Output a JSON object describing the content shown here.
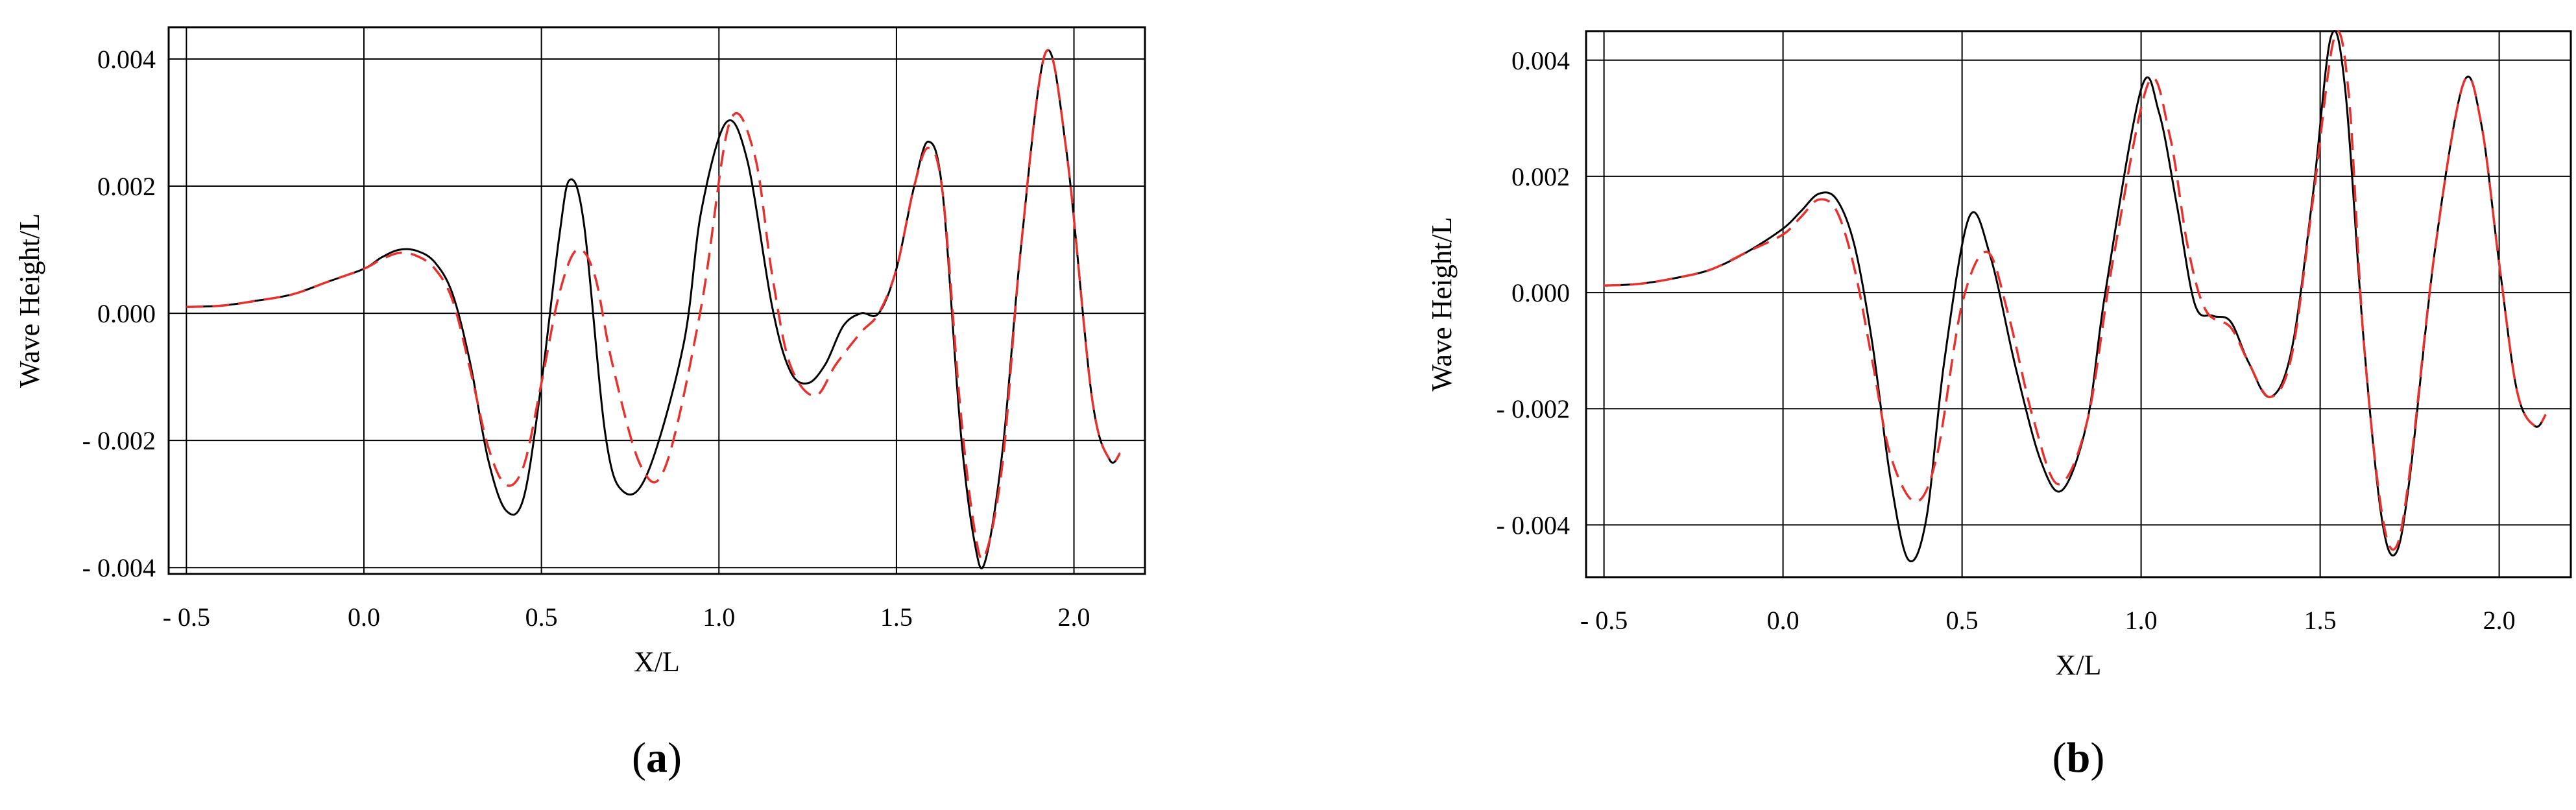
{
  "chart_data": [
    {
      "type": "line",
      "panel_label": {
        "open": "(",
        "letter": "a",
        "close": ")"
      },
      "xlabel": "X/L",
      "ylabel": "Wave Height/L",
      "xlim": [
        -0.55,
        2.2
      ],
      "ylim": [
        -0.0041,
        0.0045
      ],
      "xticks": [
        -0.5,
        0.0,
        0.5,
        1.0,
        1.5,
        2.0
      ],
      "xtick_labels": [
        "- 0.5",
        "0.0",
        "0.5",
        "1.0",
        "1.5",
        "2.0"
      ],
      "yticks": [
        -0.004,
        -0.002,
        0.0,
        0.002,
        0.004
      ],
      "ytick_labels": [
        "- 0.004",
        "- 0.002",
        "0.000",
        "0.002",
        "0.004"
      ],
      "grid": true,
      "legend": "none",
      "series": [
        {
          "color": "#000000",
          "dash": "solid",
          "x": [
            -0.5,
            -0.4,
            -0.3,
            -0.2,
            -0.1,
            0.0,
            0.05,
            0.1,
            0.15,
            0.2,
            0.25,
            0.3,
            0.35,
            0.4,
            0.45,
            0.5,
            0.55,
            0.58,
            0.62,
            0.68,
            0.73,
            0.8,
            0.9,
            0.95,
            1.02,
            1.08,
            1.15,
            1.2,
            1.25,
            1.3,
            1.35,
            1.4,
            1.45,
            1.5,
            1.55,
            1.59,
            1.63,
            1.68,
            1.72,
            1.75,
            1.8,
            1.85,
            1.92,
            1.98,
            2.05,
            2.1,
            2.13
          ],
          "y": [
            0.0001,
            0.00012,
            0.0002,
            0.0003,
            0.0005,
            0.0007,
            0.00088,
            0.001,
            0.00098,
            0.0008,
            0.0003,
            -0.0008,
            -0.0023,
            -0.0031,
            -0.0029,
            -0.0011,
            0.0012,
            0.0021,
            0.0014,
            -0.0019,
            -0.0028,
            -0.0025,
            -0.0005,
            0.0016,
            0.003,
            0.0024,
            0.0001,
            -0.0009,
            -0.0011,
            -0.0008,
            -0.0002,
            0.0,
            0.0,
            0.0007,
            0.002,
            0.0027,
            0.0019,
            -0.0018,
            -0.0036,
            -0.0039,
            -0.0021,
            0.001,
            0.0041,
            0.0025,
            -0.0013,
            -0.0023,
            -0.0022
          ]
        },
        {
          "color": "#e8312d",
          "dash": "dashed",
          "x": [
            -0.5,
            -0.4,
            -0.3,
            -0.2,
            -0.1,
            0.0,
            0.05,
            0.1,
            0.15,
            0.2,
            0.25,
            0.3,
            0.35,
            0.4,
            0.45,
            0.5,
            0.55,
            0.6,
            0.65,
            0.7,
            0.78,
            0.85,
            0.95,
            1.03,
            1.1,
            1.15,
            1.2,
            1.27,
            1.33,
            1.4,
            1.45,
            1.5,
            1.55,
            1.59,
            1.63,
            1.68,
            1.72,
            1.75,
            1.8,
            1.85,
            1.92,
            1.98,
            2.05,
            2.1,
            2.13
          ],
          "y": [
            0.0001,
            0.00012,
            0.0002,
            0.0003,
            0.0005,
            0.0007,
            0.00085,
            0.00095,
            0.0009,
            0.0007,
            0.0002,
            -0.0009,
            -0.0021,
            -0.0027,
            -0.0024,
            -0.0011,
            0.0003,
            0.001,
            0.0006,
            -0.0008,
            -0.0024,
            -0.0024,
            0.0001,
            0.003,
            0.0025,
            0.0006,
            -0.0008,
            -0.0013,
            -0.0008,
            -0.0003,
            0.0,
            0.0007,
            0.002,
            0.0026,
            0.0019,
            -0.0015,
            -0.0034,
            -0.0038,
            -0.0023,
            0.001,
            0.0041,
            0.0025,
            -0.0013,
            -0.0023,
            -0.0022
          ]
        }
      ]
    },
    {
      "type": "line",
      "panel_label": {
        "open": "(",
        "letter": "b",
        "close": ")"
      },
      "xlabel": "X/L",
      "ylabel": "Wave Height/L",
      "xlim": [
        -0.55,
        2.2
      ],
      "ylim": [
        -0.0049,
        0.0045
      ],
      "xticks": [
        -0.5,
        0.0,
        0.5,
        1.0,
        1.5,
        2.0
      ],
      "xtick_labels": [
        "- 0.5",
        "0.0",
        "0.5",
        "1.0",
        "1.5",
        "2.0"
      ],
      "yticks": [
        -0.004,
        -0.002,
        0.0,
        0.002,
        0.004
      ],
      "ytick_labels": [
        "- 0.004",
        "- 0.002",
        "0.000",
        "0.002",
        "0.004"
      ],
      "grid": true,
      "legend": "none",
      "series": [
        {
          "color": "#000000",
          "dash": "solid",
          "x": [
            -0.5,
            -0.4,
            -0.3,
            -0.2,
            -0.1,
            0.0,
            0.05,
            0.1,
            0.15,
            0.2,
            0.25,
            0.3,
            0.35,
            0.4,
            0.45,
            0.52,
            0.58,
            0.65,
            0.72,
            0.78,
            0.85,
            0.9,
            1.0,
            1.05,
            1.1,
            1.15,
            1.2,
            1.25,
            1.3,
            1.36,
            1.42,
            1.48,
            1.53,
            1.57,
            1.62,
            1.67,
            1.71,
            1.75,
            1.82,
            1.9,
            1.95,
            2.0,
            2.05,
            2.1,
            2.13
          ],
          "y": [
            0.00012,
            0.00015,
            0.00025,
            0.0004,
            0.0007,
            0.0011,
            0.0014,
            0.0017,
            0.0016,
            0.0008,
            -0.0009,
            -0.0032,
            -0.0046,
            -0.0039,
            -0.0012,
            0.0013,
            0.0006,
            -0.0013,
            -0.0029,
            -0.0034,
            -0.0022,
            0.0,
            0.0035,
            0.0031,
            0.0015,
            -0.0002,
            -0.0004,
            -0.0005,
            -0.0012,
            -0.0018,
            -0.001,
            0.0017,
            0.0044,
            0.0035,
            -0.0007,
            -0.0038,
            -0.0045,
            -0.0032,
            0.0007,
            0.0036,
            0.0029,
            0.0005,
            -0.0017,
            -0.0023,
            -0.0021
          ]
        },
        {
          "color": "#e8312d",
          "dash": "dashed",
          "x": [
            -0.5,
            -0.4,
            -0.3,
            -0.2,
            -0.1,
            0.0,
            0.05,
            0.1,
            0.15,
            0.2,
            0.25,
            0.3,
            0.37,
            0.43,
            0.5,
            0.57,
            0.63,
            0.7,
            0.77,
            0.85,
            0.92,
            1.02,
            1.08,
            1.13,
            1.18,
            1.25,
            1.3,
            1.36,
            1.42,
            1.48,
            1.54,
            1.58,
            1.62,
            1.67,
            1.71,
            1.75,
            1.82,
            1.9,
            1.95,
            2.0,
            2.05,
            2.1,
            2.13
          ],
          "y": [
            0.00012,
            0.00015,
            0.00025,
            0.0004,
            0.0007,
            0.001,
            0.0013,
            0.0016,
            0.0014,
            0.0004,
            -0.0012,
            -0.0028,
            -0.0036,
            -0.0028,
            -0.0002,
            0.0007,
            -0.0004,
            -0.0022,
            -0.0033,
            -0.0022,
            0.0005,
            0.0036,
            0.0027,
            0.0008,
            -0.0003,
            -0.0006,
            -0.0012,
            -0.0018,
            -0.0011,
            0.0016,
            0.0044,
            0.0034,
            -0.0007,
            -0.0037,
            -0.0044,
            -0.0031,
            0.0007,
            0.0036,
            0.0029,
            0.0005,
            -0.0017,
            -0.0023,
            -0.0021
          ]
        }
      ]
    }
  ]
}
